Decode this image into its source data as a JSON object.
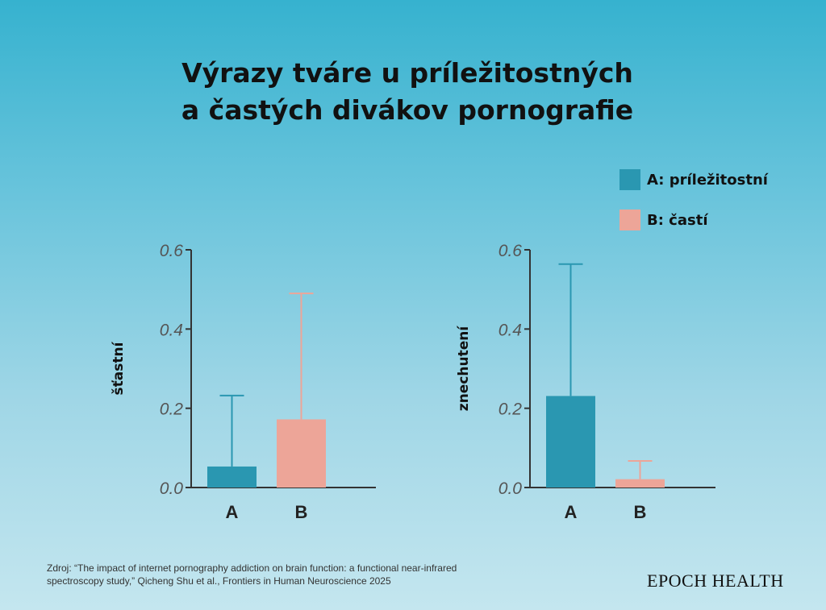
{
  "title": {
    "line1": "Výrazy tváre u príležitostných",
    "line2": "a častých divákov pornografie"
  },
  "legend": [
    {
      "label": "A: príležitostní",
      "color": "#2a97b1"
    },
    {
      "label": "B: častí",
      "color": "#eda598"
    }
  ],
  "chart_data": [
    {
      "type": "bar",
      "ylabel": "šťastní",
      "categories": [
        "A",
        "B"
      ],
      "values": [
        0.053,
        0.172
      ],
      "error_upper": [
        0.232,
        0.49
      ],
      "colors": [
        "#2a97b1",
        "#eda598"
      ],
      "ylim": [
        0,
        0.6
      ],
      "yticks": [
        "0.0",
        "0.2",
        "0.4",
        "0.6"
      ],
      "grid": false
    },
    {
      "type": "bar",
      "ylabel": "znechutení",
      "categories": [
        "A",
        "B"
      ],
      "values": [
        0.231,
        0.021
      ],
      "error_upper": [
        0.564,
        0.067
      ],
      "colors": [
        "#2a97b1",
        "#eda598"
      ],
      "ylim": [
        0,
        0.6
      ],
      "yticks": [
        "0.0",
        "0.2",
        "0.4",
        "0.6"
      ],
      "grid": false
    }
  ],
  "source": {
    "line1": "Zdroj: “The impact of internet pornography addiction on brain function: a functional near-infrared",
    "line2": "spectroscopy study,” Qicheng Shu et al., Frontiers in Human Neuroscience 2025"
  },
  "brand": "EPOCH HEALTH"
}
